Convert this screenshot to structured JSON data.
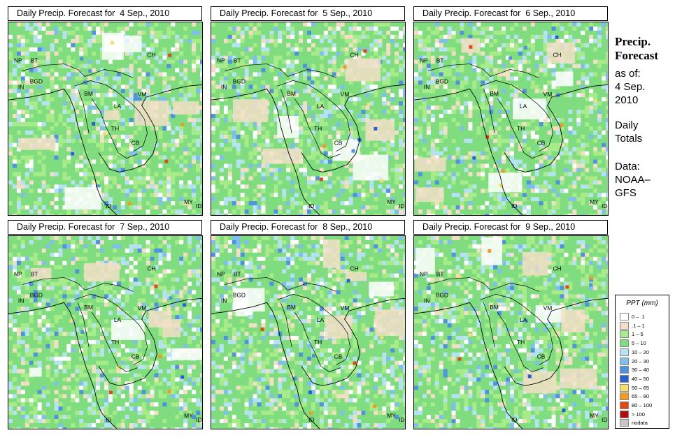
{
  "side": {
    "title_line1": "Precip.",
    "title_line2": "Forecast",
    "asof": "as of:",
    "date_line1": "4 Sep.",
    "date_line2": "2010",
    "totals_line1": "Daily",
    "totals_line2": "Totals",
    "data_line1": "Data:",
    "data_line2": "NOAA–",
    "data_line3": "GFS"
  },
  "panels": [
    {
      "title": "Daily Precip. Forecast for  4 Sep., 2010"
    },
    {
      "title": "Daily Precip. Forecast for  5 Sep., 2010"
    },
    {
      "title": "Daily Precip. Forecast for  6 Sep., 2010"
    },
    {
      "title": "Daily Precip. Forecast for  7 Sep., 2010"
    },
    {
      "title": "Daily Precip. Forecast for  8 Sep., 2010"
    },
    {
      "title": "Daily Precip. Forecast for  9 Sep., 2010"
    }
  ],
  "country_labels": [
    "NP",
    "BT",
    "IN",
    "BGD",
    "BM",
    "CH",
    "VM",
    "LA",
    "TH",
    "CB",
    "MY",
    "ID",
    "MY",
    "ID"
  ],
  "legend": {
    "title": "PPT (mm)",
    "items": [
      {
        "label": "0 – .1",
        "color": "#ffffff"
      },
      {
        "label": ".1 – 1",
        "color": "#f2dfc6"
      },
      {
        "label": "1 – 5",
        "color": "#a8ec8a"
      },
      {
        "label": "5 – 10",
        "color": "#7fdc7f"
      },
      {
        "label": "10 – 20",
        "color": "#b6e3f4"
      },
      {
        "label": "20 – 30",
        "color": "#7fbfee"
      },
      {
        "label": "30 – 40",
        "color": "#4f93e0"
      },
      {
        "label": "40 – 50",
        "color": "#2a5fd2"
      },
      {
        "label": "50 – 65",
        "color": "#f5e06e"
      },
      {
        "label": "65 – 80",
        "color": "#f39a1f"
      },
      {
        "label": "80 – 100",
        "color": "#e04a10"
      },
      {
        "label": "> 100",
        "color": "#b80a0a"
      },
      {
        "label": "nodata",
        "color": "#c8c8c8"
      }
    ]
  }
}
